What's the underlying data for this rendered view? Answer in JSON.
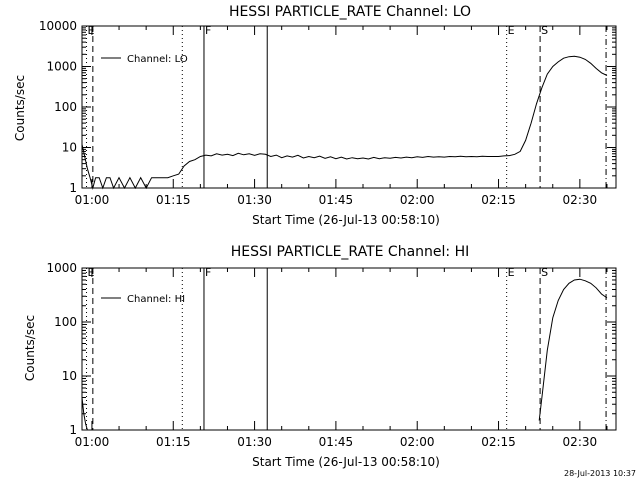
{
  "timestamp": "28-Jul-2013 10:37",
  "chart_data": [
    {
      "type": "line",
      "title": "HESSI PARTICLE_RATE Channel: LO",
      "xlabel": "Start Time (26-Jul-13 00:58:10)",
      "ylabel": "Counts/sec",
      "legend": "Channel: LO",
      "y_scale": "log",
      "ylim": [
        1,
        10000
      ],
      "xlim": [
        "00:58:10",
        "02:36:40"
      ],
      "xticks": [
        "01:00",
        "01:15",
        "01:30",
        "01:45",
        "02:00",
        "02:15",
        "02:30"
      ],
      "yticks": [
        "1",
        "10",
        "100",
        "1000",
        "10000"
      ],
      "markers": [
        {
          "label": "E",
          "time": "00:59:00",
          "style": "dotted"
        },
        {
          "label": "",
          "time": "01:00:10",
          "style": "dashed"
        },
        {
          "label": "",
          "time": "01:16:40",
          "style": "dotted"
        },
        {
          "label": "F",
          "time": "01:20:40",
          "style": "solid"
        },
        {
          "label": "",
          "time": "01:32:20",
          "style": "solid"
        },
        {
          "label": "E",
          "time": "02:16:30",
          "style": "dotted"
        },
        {
          "label": "S",
          "time": "02:22:40",
          "style": "dashed"
        },
        {
          "label": "",
          "time": "02:34:50",
          "style": "dashdot"
        }
      ],
      "series": [
        {
          "x": [
            "00:58:10",
            "00:58:40",
            "00:59:10",
            "00:59:40",
            "01:00:10",
            "01:00:40",
            "01:01:20",
            "01:02:00",
            "01:02:40",
            "01:03:20",
            "01:04:00",
            "01:05:00",
            "01:06:00",
            "01:07:00",
            "01:08:00",
            "01:09:00",
            "01:10:00",
            "01:11:00",
            "01:12:00",
            "01:13:00",
            "01:14:00",
            "01:15:00",
            "01:16:00",
            "01:17:00",
            "01:18:00",
            "01:19:00",
            "01:20:00",
            "01:21:00",
            "01:22:00",
            "01:23:00",
            "01:24:00",
            "01:25:00",
            "01:26:00",
            "01:27:00",
            "01:28:00",
            "01:29:00",
            "01:30:00",
            "01:31:00",
            "01:32:00",
            "01:33:00",
            "01:34:00",
            "01:35:00",
            "01:36:00",
            "01:37:00",
            "01:38:00",
            "01:39:00",
            "01:40:00",
            "01:41:00",
            "01:42:00",
            "01:43:00",
            "01:44:00",
            "01:45:00",
            "01:46:00",
            "01:47:00",
            "01:48:00",
            "01:49:00",
            "01:50:00",
            "01:51:00",
            "01:52:00",
            "01:53:00",
            "01:54:00",
            "01:55:00",
            "01:56:00",
            "01:57:00",
            "01:58:00",
            "01:59:00",
            "02:00:00",
            "02:01:00",
            "02:02:00",
            "02:03:00",
            "02:04:00",
            "02:05:00",
            "02:06:00",
            "02:07:00",
            "02:08:00",
            "02:09:00",
            "02:10:00",
            "02:11:00",
            "02:12:00",
            "02:13:00",
            "02:14:00",
            "02:15:00",
            "02:16:00",
            "02:17:00",
            "02:18:00",
            "02:19:00",
            "02:20:00",
            "02:21:00",
            "02:22:00",
            "02:23:00",
            "02:24:00",
            "02:25:00",
            "02:26:00",
            "02:27:00",
            "02:28:00",
            "02:29:00",
            "02:30:00",
            "02:31:00",
            "02:32:00",
            "02:33:00",
            "02:34:00",
            "02:35:00"
          ],
          "y": [
            12,
            6,
            3,
            1.8,
            1,
            1.8,
            1.8,
            1,
            1.8,
            1.8,
            1,
            1.8,
            1,
            1.8,
            1,
            1.8,
            1,
            1.8,
            1.8,
            1.8,
            1.8,
            2,
            2.2,
            3.5,
            4.5,
            5,
            6,
            6.5,
            6.2,
            7,
            6.5,
            6.8,
            6.3,
            7.2,
            6.6,
            7,
            6.4,
            7,
            6.8,
            6,
            6.5,
            5.6,
            6.2,
            5.8,
            6.4,
            5.5,
            6,
            5.6,
            6.1,
            5.4,
            5.9,
            5.3,
            5.8,
            5.2,
            5.6,
            5.3,
            5.5,
            5.2,
            5.7,
            5.3,
            5.6,
            5.4,
            5.7,
            5.5,
            5.8,
            5.6,
            5.9,
            5.7,
            6,
            5.8,
            5.9,
            5.8,
            6,
            5.9,
            6.1,
            5.9,
            6,
            5.9,
            6.1,
            6,
            6,
            6,
            6.2,
            6.3,
            6.8,
            8,
            15,
            40,
            120,
            300,
            650,
            1000,
            1300,
            1600,
            1750,
            1800,
            1700,
            1500,
            1200,
            900,
            700,
            600
          ]
        }
      ]
    },
    {
      "type": "line",
      "title": "HESSI PARTICLE_RATE Channel: HI",
      "xlabel": "Start Time (26-Jul-13 00:58:10)",
      "ylabel": "Counts/sec",
      "legend": "Channel: HI",
      "y_scale": "log",
      "ylim": [
        1,
        1000
      ],
      "xlim": [
        "00:58:10",
        "02:36:40"
      ],
      "xticks": [
        "01:00",
        "01:15",
        "01:30",
        "01:45",
        "02:00",
        "02:15",
        "02:30"
      ],
      "yticks": [
        "1",
        "10",
        "100",
        "1000"
      ],
      "markers": [
        {
          "label": "E",
          "time": "00:59:00",
          "style": "dotted"
        },
        {
          "label": "",
          "time": "01:00:10",
          "style": "dashed"
        },
        {
          "label": "",
          "time": "01:16:40",
          "style": "dotted"
        },
        {
          "label": "F",
          "time": "01:20:40",
          "style": "solid"
        },
        {
          "label": "",
          "time": "01:32:20",
          "style": "solid"
        },
        {
          "label": "E",
          "time": "02:16:30",
          "style": "dotted"
        },
        {
          "label": "S",
          "time": "02:22:40",
          "style": "dashed"
        },
        {
          "label": "",
          "time": "02:34:50",
          "style": "dashdot"
        }
      ],
      "series": [
        {
          "x": [
            "00:58:10",
            "00:58:30",
            "00:58:50",
            "00:59:10"
          ],
          "y": [
            4,
            2,
            1.3,
            1
          ]
        },
        {
          "x": [
            "02:22:30",
            "02:23:00",
            "02:24:00",
            "02:25:00",
            "02:26:00",
            "02:27:00",
            "02:28:00",
            "02:29:00",
            "02:30:00",
            "02:31:00",
            "02:32:00",
            "02:33:00",
            "02:34:00",
            "02:35:00"
          ],
          "y": [
            1.5,
            4,
            30,
            120,
            250,
            400,
            520,
            600,
            620,
            580,
            520,
            430,
            330,
            280
          ]
        }
      ]
    }
  ]
}
